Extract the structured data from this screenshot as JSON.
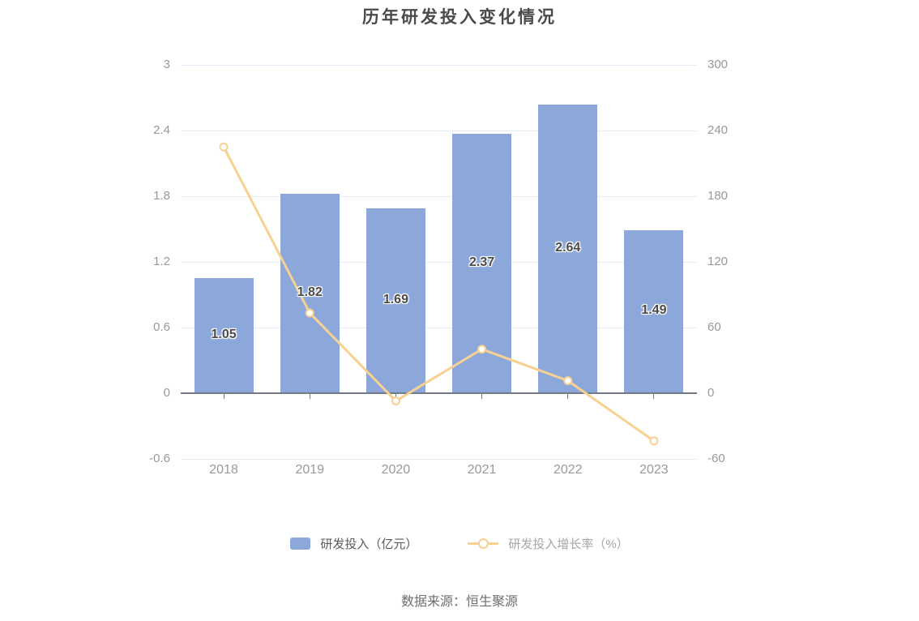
{
  "title": "历年研发投入变化情况",
  "source": "数据来源：恒生聚源",
  "legend": [
    {
      "label": "研发投入（亿元）"
    },
    {
      "label": "研发投入增长率（%）"
    }
  ],
  "colors": {
    "bar": "#8CA8DB",
    "line": "#F8D191",
    "grid": "#E6EBF7",
    "axis_line": "#757B86",
    "axis_label": "#999999",
    "bar_label": "#4A4A4A",
    "title": "#4A4A4A",
    "legend_text_primary": "#5A5A5A",
    "legend_text_secondary": "#A6A6A6",
    "source_text": "#6E6E6E"
  },
  "chart_data": {
    "type": "bar",
    "title": "历年研发投入变化情况",
    "xlabel": "",
    "ylabel": "",
    "categories": [
      "2018",
      "2019",
      "2020",
      "2021",
      "2022",
      "2023"
    ],
    "series": [
      {
        "name": "研发投入（亿元）",
        "type": "bar",
        "axis": "left",
        "values": [
          1.05,
          1.82,
          1.69,
          2.37,
          2.64,
          1.49
        ],
        "labels": [
          "1.05",
          "1.82",
          "1.69",
          "2.37",
          "2.64",
          "1.49"
        ]
      },
      {
        "name": "研发投入增长率（%）",
        "type": "line",
        "axis": "right",
        "values": [
          225.0,
          73.3,
          -7.1,
          40.2,
          11.4,
          -43.6
        ]
      }
    ],
    "left_axis": {
      "min": -0.6,
      "max": 3,
      "ticks": [
        3,
        2.4,
        1.8,
        1.2,
        0.6,
        0,
        -0.6
      ]
    },
    "right_axis": {
      "min": -60,
      "max": 300,
      "ticks": [
        300,
        240,
        180,
        120,
        60,
        0,
        -60
      ]
    },
    "grid": true,
    "legend_position": "bottom"
  }
}
